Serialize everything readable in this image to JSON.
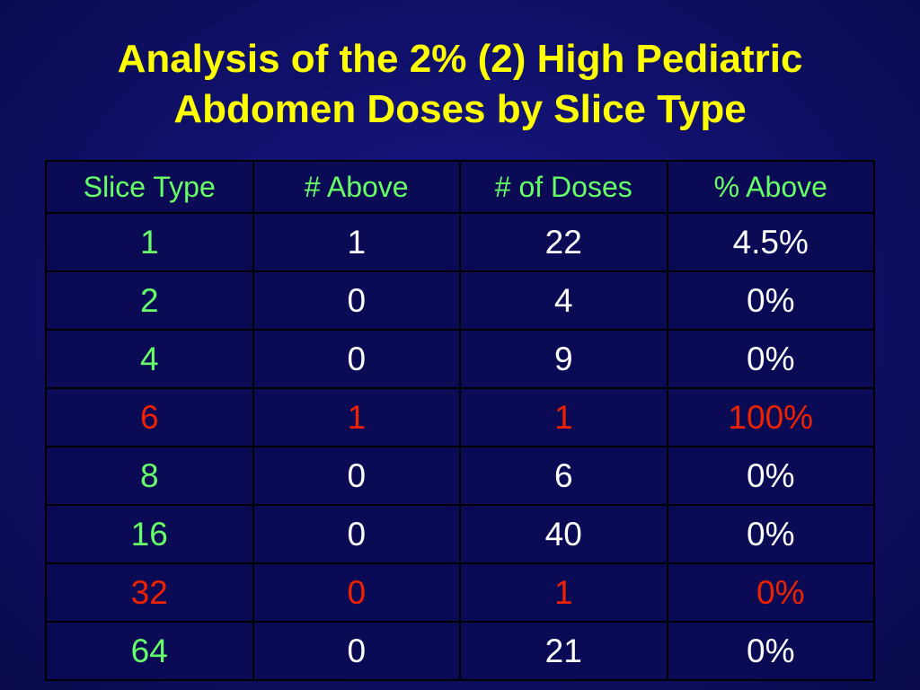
{
  "title": {
    "line1": "Analysis of the 2% (2) High Pediatric",
    "line2": "Abdomen Doses by Slice Type"
  },
  "colors": {
    "title": "#ffff00",
    "header": "#66ff66",
    "slice_type": "#66ff66",
    "value": "#ffffff",
    "highlight": "#ee2200",
    "background": "#11116e"
  },
  "table": {
    "headers": [
      "Slice Type",
      "# Above",
      "# of Doses",
      "% Above"
    ],
    "rows": [
      [
        "1",
        "1",
        "22",
        "4.5%"
      ],
      [
        "2",
        "0",
        "4",
        "0%"
      ],
      [
        "4",
        "0",
        "9",
        "0%"
      ],
      [
        "6",
        "1",
        "1",
        "100%"
      ],
      [
        "8",
        "0",
        "6",
        "0%"
      ],
      [
        "16",
        "0",
        "40",
        "0%"
      ],
      [
        "32",
        "0",
        "1",
        "0%"
      ],
      [
        "64",
        "0",
        "21",
        "0%"
      ]
    ]
  }
}
